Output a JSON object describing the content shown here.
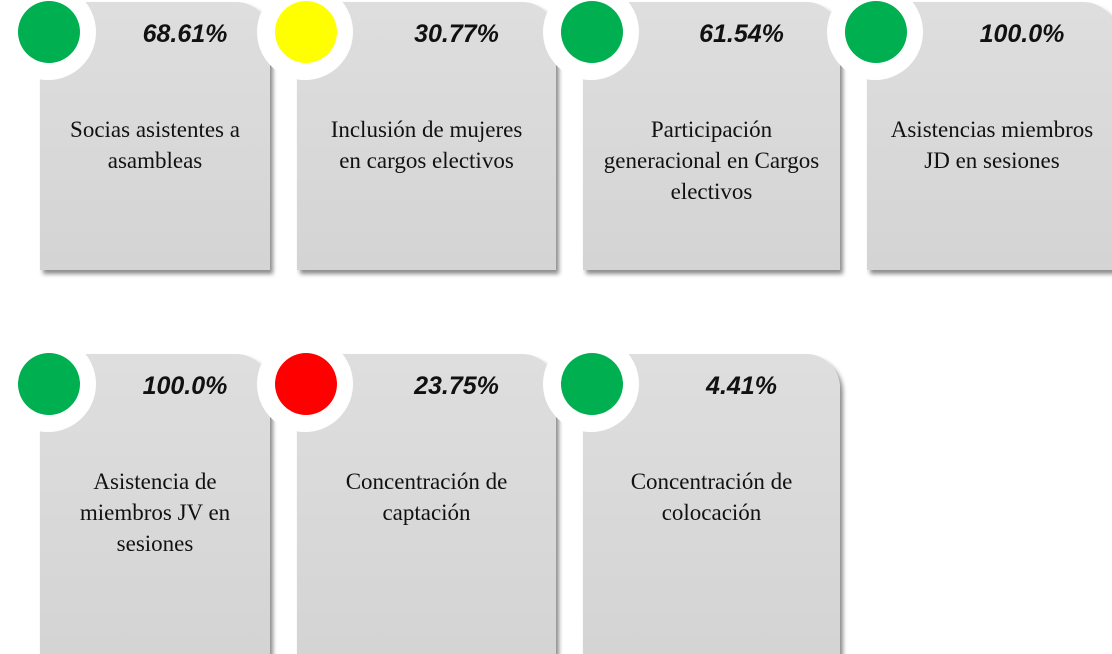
{
  "cards": [
    {
      "value": "68.61%",
      "label": "Socias asistentes a asambleas",
      "status_color": "#00b050"
    },
    {
      "value": "30.77%",
      "label": "Inclusión de mujeres en cargos electivos",
      "status_color": "#ffff00"
    },
    {
      "value": "61.54%",
      "label": "Participación generacional en Cargos electivos",
      "status_color": "#00b050"
    },
    {
      "value": "100.0%",
      "label": "Asistencias miembros JD en sesiones",
      "status_color": "#00b050"
    },
    {
      "value": "100.0%",
      "label": "Asistencia de miembros JV en sesiones",
      "status_color": "#00b050"
    },
    {
      "value": "23.75%",
      "label": "Concentración de captación",
      "status_color": "#ff0000"
    },
    {
      "value": "4.41%",
      "label": "Concentración de colocación",
      "status_color": "#00b050"
    }
  ]
}
